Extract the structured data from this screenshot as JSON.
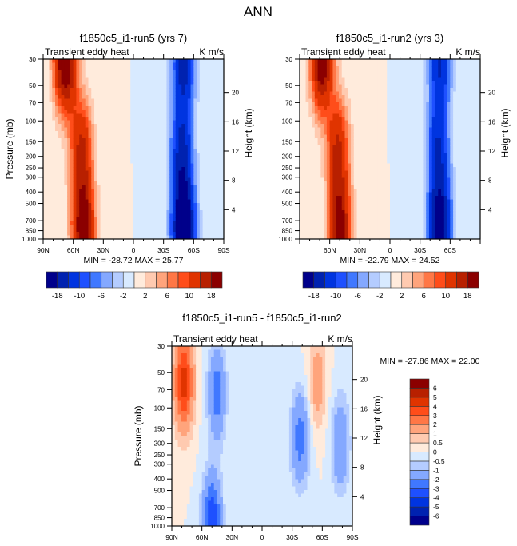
{
  "figure": {
    "main_title": "ANN"
  },
  "palette": {
    "main": [
      "#00008b",
      "#0022b0",
      "#0034e0",
      "#1e50ff",
      "#4078ff",
      "#84a8ff",
      "#b4ccff",
      "#d8eaff",
      "#ffebdc",
      "#ffcab0",
      "#ffa47c",
      "#ff7746",
      "#ff4d1a",
      "#e03400",
      "#b82000",
      "#8b0000"
    ],
    "diff": [
      "#00008b",
      "#0022b0",
      "#0034e0",
      "#1e50ff",
      "#4078ff",
      "#84a8ff",
      "#b4ccff",
      "#d8eaff",
      "#ffebdc",
      "#ffcab0",
      "#ffa47c",
      "#ff7746",
      "#ff4d1a",
      "#e03400",
      "#b82000",
      "#8b0000"
    ]
  },
  "chart_data": [
    {
      "type": "heatmap",
      "id": "panel-run5",
      "title": "f1850c5_i1-run5 (yrs 7)",
      "left_label": "Transient eddy heat",
      "right_label": "K m/s",
      "xlabel": "",
      "ylabel": "Pressure (mb)",
      "ylabel_right": "Height (km)",
      "x_ticks": [
        "90N",
        "60N",
        "30N",
        "0",
        "30S",
        "60S",
        "90S"
      ],
      "x_range": [
        90,
        -90
      ],
      "y_ticks": [
        30,
        50,
        70,
        100,
        150,
        200,
        250,
        300,
        400,
        500,
        700,
        850,
        1000
      ],
      "y_range": [
        30,
        1000
      ],
      "y_scale": "log",
      "y_right_ticks": [
        4,
        8,
        12,
        16,
        20
      ],
      "stats": "MIN = -28.72  MAX =  25.77",
      "min": -28.72,
      "max": 25.77,
      "colorbar": {
        "orientation": "horizontal",
        "labels": [
          "-18",
          "-10",
          "-6",
          "-2",
          "2",
          "6",
          "10",
          "18"
        ],
        "levels": [
          -18,
          -14,
          -10,
          -8,
          -6,
          -4,
          -2,
          0,
          2,
          4,
          6,
          8,
          10,
          14,
          18
        ]
      },
      "features": [
        {
          "lat": 68,
          "p": 30,
          "value": 24,
          "desc": "NH stratospheric positive max"
        },
        {
          "lat": 52,
          "p": 170,
          "value": 14,
          "desc": "NH upper-tropospheric positive max"
        },
        {
          "lat": 50,
          "p": 850,
          "value": 22,
          "desc": "NH lower-tropospheric positive max"
        },
        {
          "lat": -50,
          "p": 30,
          "value": -16,
          "desc": "SH stratospheric negative max"
        },
        {
          "lat": -48,
          "p": 180,
          "value": -14,
          "desc": "SH upper-tropospheric negative max"
        },
        {
          "lat": -50,
          "p": 880,
          "value": -28,
          "desc": "SH lower-tropospheric negative max"
        }
      ]
    },
    {
      "type": "heatmap",
      "id": "panel-run2",
      "title": "f1850c5_i1-run2 (yrs 3)",
      "left_label": "Transient eddy heat",
      "right_label": "K m/s",
      "xlabel": "",
      "ylabel": "",
      "ylabel_right": "Height (km)",
      "x_ticks": [
        "60N",
        "30N",
        "0",
        "30S",
        "60S"
      ],
      "x_range": [
        90,
        -90
      ],
      "y_ticks": [
        30,
        50,
        70,
        100,
        150,
        200,
        250,
        300,
        400,
        500,
        700,
        850,
        1000
      ],
      "y_range": [
        30,
        1000
      ],
      "y_scale": "log",
      "y_right_ticks": [
        4,
        8,
        12,
        16,
        20
      ],
      "stats": "MIN = -22.79  MAX =  24.52",
      "min": -22.79,
      "max": 24.52,
      "colorbar": {
        "orientation": "horizontal",
        "labels": [
          "-18",
          "-10",
          "-6",
          "-2",
          "2",
          "6",
          "10",
          "18"
        ],
        "levels": [
          -18,
          -14,
          -10,
          -8,
          -6,
          -4,
          -2,
          0,
          2,
          4,
          6,
          8,
          10,
          14,
          18
        ]
      },
      "features": [
        {
          "lat": 68,
          "p": 30,
          "value": 22,
          "desc": "NH stratospheric positive max"
        },
        {
          "lat": 52,
          "p": 170,
          "value": 14,
          "desc": "NH upper-tropospheric positive max"
        },
        {
          "lat": 50,
          "p": 850,
          "value": 20,
          "desc": "NH lower-tropospheric positive max"
        },
        {
          "lat": -50,
          "p": 30,
          "value": -14,
          "desc": "SH stratospheric negative max"
        },
        {
          "lat": -48,
          "p": 180,
          "value": -13,
          "desc": "SH upper-tropospheric negative max"
        },
        {
          "lat": -50,
          "p": 880,
          "value": -22,
          "desc": "SH lower-tropospheric negative max"
        }
      ]
    },
    {
      "type": "heatmap",
      "id": "panel-diff",
      "title": "f1850c5_i1-run5 - f1850c5_i1-run2",
      "left_label": "Transient eddy heat",
      "right_label": "K m/s",
      "xlabel": "",
      "ylabel": "Pressure (mb)",
      "ylabel_right": "Height (km)",
      "x_ticks": [
        "90N",
        "60N",
        "30N",
        "0",
        "30S",
        "60S",
        "90S"
      ],
      "x_range": [
        90,
        -90
      ],
      "y_ticks": [
        30,
        50,
        70,
        100,
        150,
        200,
        250,
        300,
        400,
        500,
        700,
        850,
        1000
      ],
      "y_range": [
        30,
        1000
      ],
      "y_scale": "log",
      "y_right_ticks": [
        4,
        8,
        12,
        16,
        20
      ],
      "stats": "MIN = -27.86  MAX =  22.00",
      "min": -27.86,
      "max": 22.0,
      "colorbar": {
        "orientation": "vertical",
        "labels": [
          "6",
          "5",
          "4",
          "3",
          "2",
          "1",
          "0.5",
          "0",
          "-0.5",
          "-1",
          "-2",
          "-3",
          "-4",
          "-5",
          "-6"
        ],
        "levels": [
          -6,
          -5,
          -4,
          -3,
          -2,
          -1,
          -0.5,
          0,
          0.5,
          1,
          2,
          3,
          4,
          5,
          6
        ]
      },
      "features": [
        {
          "lat": 78,
          "p": 60,
          "value": 4.5,
          "desc": "NH polar stratospheric positive"
        },
        {
          "lat": 45,
          "p": 75,
          "value": -2.5,
          "desc": "NH mid-lat negative"
        },
        {
          "lat": -38,
          "p": 180,
          "value": -2.5,
          "desc": "SH subtropical negative"
        },
        {
          "lat": -55,
          "p": 60,
          "value": 1.5,
          "desc": "SH positive band"
        },
        {
          "lat": -78,
          "p": 200,
          "value": -2,
          "desc": "SH polar negative"
        },
        {
          "lat": 50,
          "p": 950,
          "value": -4,
          "desc": "NH surface negative"
        }
      ]
    }
  ]
}
